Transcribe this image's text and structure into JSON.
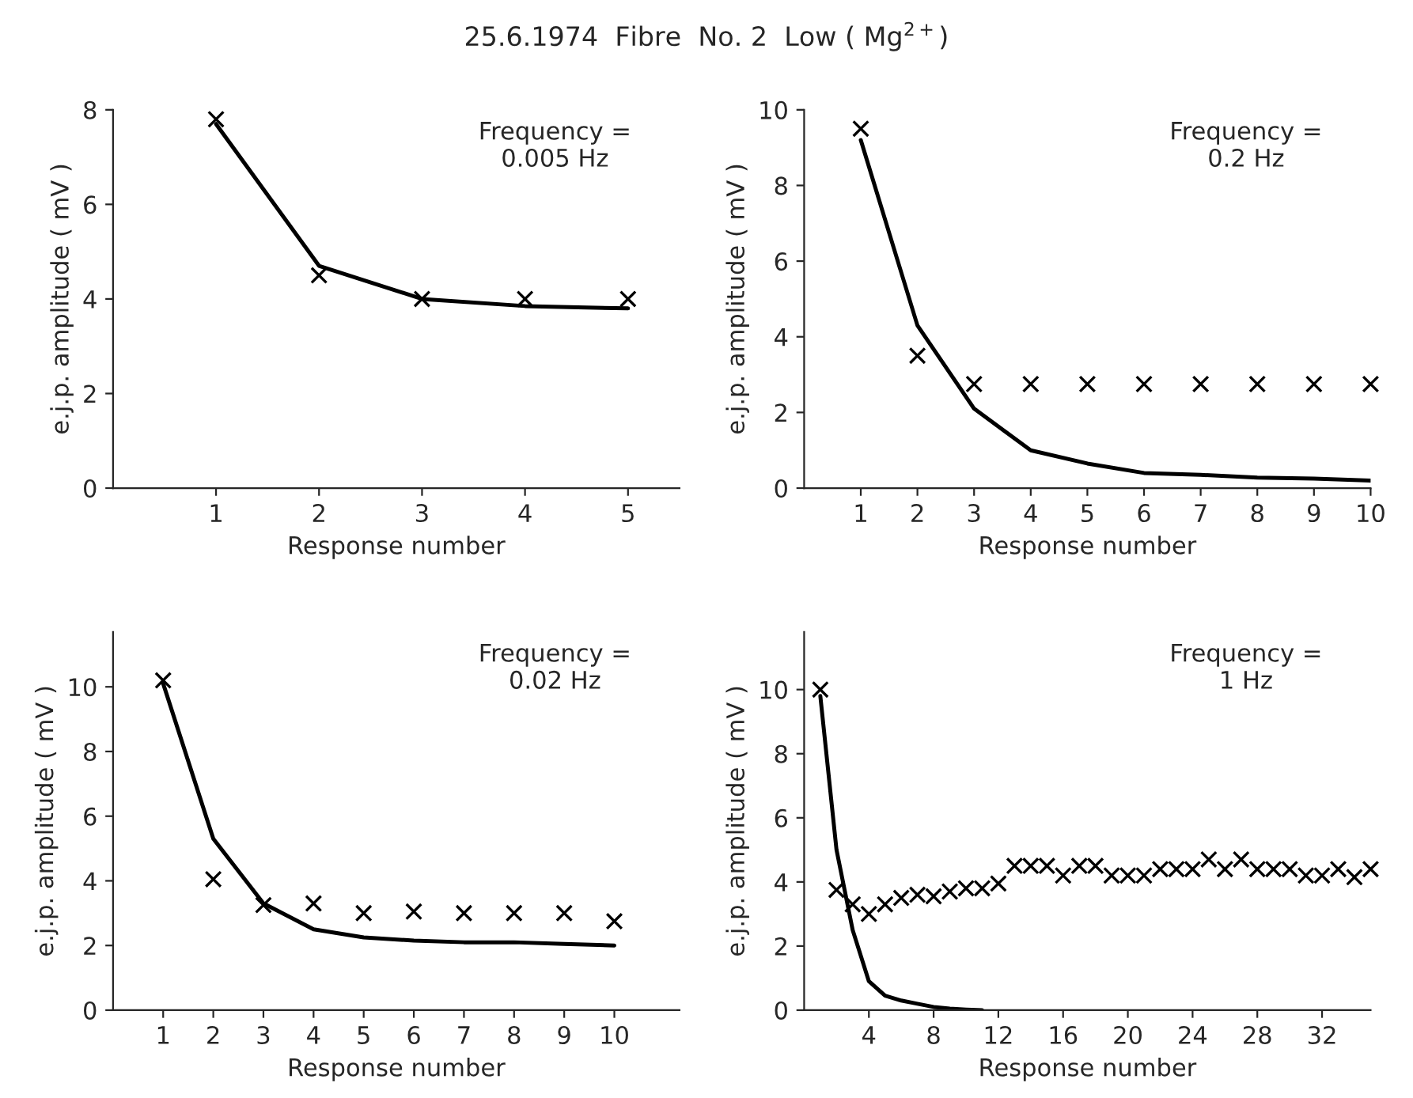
{
  "chart_data": [
    {
      "type": "scatter",
      "title": "25.6.1974  Fibre  No. 2  Low ( Mg$^{2+}$)",
      "xlabel": "Response number",
      "ylabel": "e.j.p. amplitude ( mV )",
      "annotations": [
        "Frequency =\n0.005 Hz"
      ],
      "xlim": [
        0,
        5.5
      ],
      "xticks": [
        1,
        2,
        3,
        4,
        5
      ],
      "ylim": [
        0,
        8
      ],
      "yticks": [
        0,
        2,
        4,
        6,
        8
      ],
      "grid": false,
      "series": [
        {
          "color": "#000000",
          "marker": "cross",
          "x": [
            1,
            2,
            3,
            4,
            5
          ],
          "values": [
            7.8,
            4.5,
            4.0,
            4.0,
            4.0
          ]
        },
        {
          "type": "line",
          "color": "#000000",
          "marker": "none",
          "line_style": "solid",
          "x": [
            1,
            2,
            3,
            4,
            5
          ],
          "values": [
            7.7,
            4.7,
            4.0,
            3.85,
            3.8
          ]
        }
      ]
    },
    {
      "type": "scatter",
      "xlabel": "Response number",
      "ylabel": "e.j.p. amplitude ( mV )",
      "annotations": [
        "Frequency =\n0.2 Hz"
      ],
      "xlim": [
        0,
        10
      ],
      "xticks": [
        1,
        2,
        3,
        4,
        5,
        6,
        7,
        8,
        9,
        10
      ],
      "ylim": [
        0,
        10
      ],
      "yticks": [
        0,
        2,
        4,
        6,
        8,
        10
      ],
      "grid": false,
      "series": [
        {
          "color": "#000000",
          "marker": "cross",
          "x": [
            1,
            2,
            3,
            4,
            5,
            6,
            7,
            8,
            9,
            10
          ],
          "values": [
            9.5,
            3.5,
            2.75,
            2.75,
            2.75,
            2.75,
            2.75,
            2.75,
            2.75,
            2.75
          ]
        },
        {
          "type": "line",
          "color": "#000000",
          "marker": "none",
          "line_style": "solid",
          "x": [
            1,
            2,
            3,
            4,
            5,
            6,
            7,
            8,
            9,
            10
          ],
          "values": [
            9.2,
            4.3,
            2.1,
            1.0,
            0.65,
            0.4,
            0.35,
            0.28,
            0.25,
            0.2
          ]
        }
      ]
    },
    {
      "type": "scatter",
      "xlabel": "Response number",
      "ylabel": "e.j.p. amplitude ( mV )",
      "annotations": [
        "Frequency =\n0.02 Hz"
      ],
      "xlim": [
        0,
        11.3
      ],
      "xticks": [
        1,
        2,
        3,
        4,
        5,
        6,
        7,
        8,
        9,
        10
      ],
      "ylim": [
        0,
        11.7
      ],
      "yticks": [
        0,
        2,
        4,
        6,
        8,
        10
      ],
      "grid": false,
      "series": [
        {
          "color": "#000000",
          "marker": "cross",
          "x": [
            1,
            2,
            3,
            4,
            5,
            6,
            7,
            8,
            9,
            10
          ],
          "values": [
            10.2,
            4.05,
            3.25,
            3.3,
            3.0,
            3.05,
            3.0,
            3.0,
            3.0,
            2.75
          ]
        },
        {
          "type": "line",
          "color": "#000000",
          "marker": "none",
          "line_style": "solid",
          "x": [
            1,
            2,
            3,
            4,
            5,
            6,
            7,
            8,
            9,
            10
          ],
          "values": [
            10.1,
            5.3,
            3.3,
            2.5,
            2.25,
            2.15,
            2.1,
            2.1,
            2.05,
            2.0
          ]
        }
      ]
    },
    {
      "type": "scatter",
      "xlabel": "Response number",
      "ylabel": "e.j.p. amplitude ( mV )",
      "annotations": [
        "Frequency =\n1 Hz"
      ],
      "xlim": [
        0,
        35
      ],
      "xticks": [
        4,
        8,
        12,
        16,
        20,
        24,
        28,
        32
      ],
      "ylim": [
        0,
        11.8
      ],
      "yticks": [
        0,
        2,
        4,
        6,
        8,
        10
      ],
      "grid": false,
      "series": [
        {
          "color": "#000000",
          "marker": "cross",
          "x": [
            1,
            2,
            3,
            4,
            5,
            6,
            7,
            8,
            9,
            10,
            11,
            12,
            13,
            14,
            15,
            16,
            17,
            18,
            19,
            20,
            21,
            22,
            23,
            24,
            25,
            26,
            27,
            28,
            29,
            30,
            31,
            32,
            33,
            34,
            35
          ],
          "values": [
            10.0,
            3.75,
            3.3,
            3.0,
            3.3,
            3.5,
            3.6,
            3.55,
            3.7,
            3.8,
            3.8,
            3.95,
            4.5,
            4.5,
            4.5,
            4.2,
            4.5,
            4.5,
            4.2,
            4.2,
            4.2,
            4.4,
            4.4,
            4.4,
            4.7,
            4.4,
            4.7,
            4.4,
            4.4,
            4.4,
            4.2,
            4.2,
            4.4,
            4.15,
            4.4
          ]
        },
        {
          "type": "line",
          "color": "#000000",
          "marker": "none",
          "line_style": "solid",
          "x": [
            1,
            2,
            3,
            4,
            5,
            6,
            7,
            8,
            9,
            10,
            11
          ],
          "values": [
            9.8,
            5.0,
            2.5,
            0.9,
            0.45,
            0.3,
            0.2,
            0.1,
            0.05,
            0.02,
            0.0
          ]
        }
      ]
    }
  ]
}
